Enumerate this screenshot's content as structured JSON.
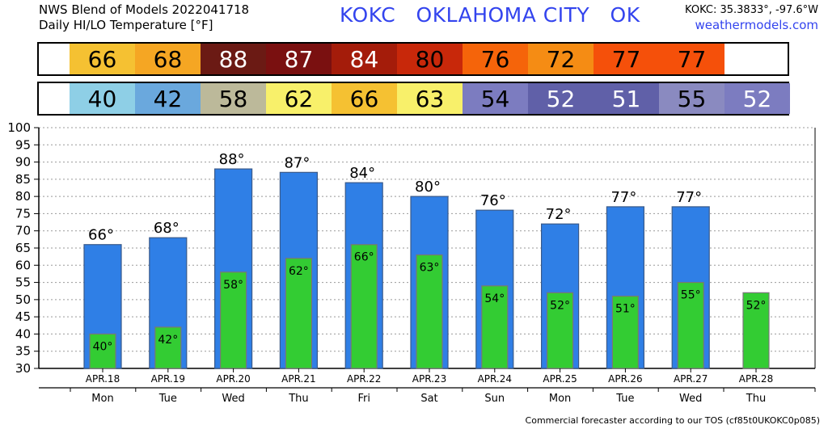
{
  "header": {
    "title_line1": "NWS Blend of Models 2022041718",
    "title_line2": "Daily HI/LO Temperature [°F]",
    "station": "KOKC   OKLAHOMA CITY   OK",
    "coords": "KOKC: 35.3833°, -97.6°W",
    "site": "weathermodels.com"
  },
  "hi_strip": {
    "values": [
      "66",
      "68",
      "88",
      "87",
      "84",
      "80",
      "76",
      "72",
      "77",
      "77"
    ],
    "colors": [
      "#f5c132",
      "#f5a623",
      "#6b1a14",
      "#7a1010",
      "#a41c0a",
      "#c8280a",
      "#f5640a",
      "#f58c14",
      "#f5500a",
      "#f5500a"
    ],
    "text_colors": [
      "#000",
      "#000",
      "#fff",
      "#fff",
      "#fff",
      "#000",
      "#000",
      "#000",
      "#000",
      "#000"
    ]
  },
  "lo_strip": {
    "values": [
      "40",
      "42",
      "58",
      "62",
      "66",
      "63",
      "54",
      "52",
      "51",
      "55",
      "52"
    ],
    "colors": [
      "#8ecfe6",
      "#6aa8dd",
      "#bcb99a",
      "#f8f06a",
      "#f5c132",
      "#f8f06a",
      "#7c7cc0",
      "#6060a8",
      "#6060a8",
      "#8a8ac0",
      "#7c7cc0"
    ],
    "text_colors": [
      "#000",
      "#000",
      "#000",
      "#000",
      "#000",
      "#000",
      "#000",
      "#fff",
      "#fff",
      "#000",
      "#fff"
    ]
  },
  "chart_data": {
    "type": "bar",
    "categories": [
      "APR.18",
      "APR.19",
      "APR.20",
      "APR.21",
      "APR.22",
      "APR.23",
      "APR.24",
      "APR.25",
      "APR.26",
      "APR.27",
      "APR.28"
    ],
    "days": [
      "Mon",
      "Tue",
      "Wed",
      "Thu",
      "Fri",
      "Sat",
      "Sun",
      "Mon",
      "Tue",
      "Wed",
      "Thu"
    ],
    "series": [
      {
        "values": [
          66,
          68,
          88,
          87,
          84,
          80,
          76,
          72,
          77,
          77,
          null
        ],
        "color": "#2f7fe6"
      },
      {
        "values": [
          40,
          42,
          58,
          62,
          66,
          63,
          54,
          52,
          51,
          55,
          52
        ],
        "color": "#33cc33"
      }
    ],
    "ylim": [
      30,
      100
    ],
    "yticks": [
      30,
      35,
      40,
      45,
      50,
      55,
      60,
      65,
      70,
      75,
      80,
      85,
      90,
      95,
      100
    ],
    "grid": true,
    "degree_symbol": "°"
  },
  "footer": "Commercial forecaster according to our TOS (cf85t0UKOKC0p085)"
}
